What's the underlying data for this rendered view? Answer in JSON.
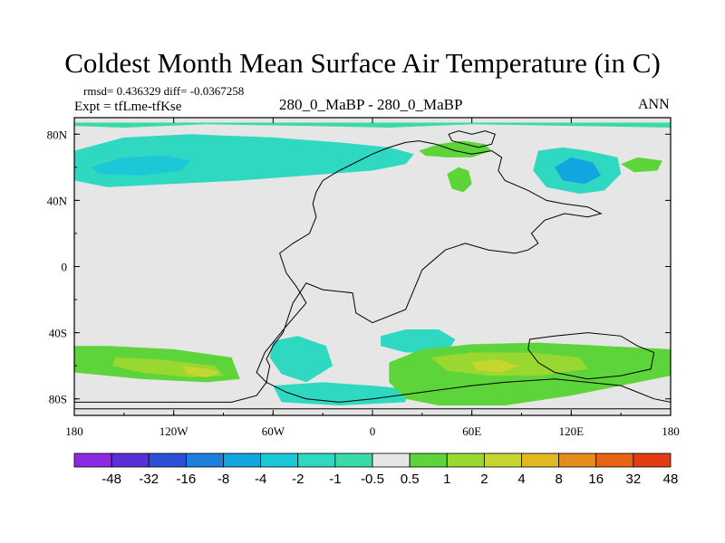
{
  "header": {
    "title": "Coldest Month Mean Surface Air Temperature (in C)",
    "stats": "rmsd= 0.436329 diff= -0.0367258",
    "experiment": "Expt = tfLme-tfKse",
    "comparison": "280_0_MaBP - 280_0_MaBP",
    "season": "ANN"
  },
  "chart_data": {
    "type": "heatmap",
    "title": "Coldest Month Mean Surface Air Temperature (in C)",
    "variable": "surface air temperature difference",
    "units": "C",
    "xlim": [
      -180,
      180
    ],
    "ylim": [
      -90,
      90
    ],
    "x_ticks": [
      {
        "value": -180,
        "label": "180"
      },
      {
        "value": -120,
        "label": "120W"
      },
      {
        "value": -60,
        "label": "60W"
      },
      {
        "value": 0,
        "label": "0"
      },
      {
        "value": 60,
        "label": "60E"
      },
      {
        "value": 120,
        "label": "120E"
      },
      {
        "value": 180,
        "label": "180"
      }
    ],
    "y_ticks": [
      {
        "value": 80,
        "label": "80N"
      },
      {
        "value": 40,
        "label": "40N"
      },
      {
        "value": 0,
        "label": "0"
      },
      {
        "value": -40,
        "label": "40S"
      },
      {
        "value": -80,
        "label": "80S"
      }
    ],
    "colorbar": {
      "colors": [
        "#8a2be2",
        "#5a2fd6",
        "#2c4fd8",
        "#1c7fdc",
        "#12a5e0",
        "#1cc8d8",
        "#2fd8c0",
        "#3ad9a8",
        "#e6e6e6",
        "#5cd43a",
        "#98d830",
        "#c7d62e",
        "#e0b820",
        "#e48d1a",
        "#e66414",
        "#e23c12"
      ],
      "labels": [
        "-48",
        "-32",
        "-16",
        "-8",
        "-4",
        "-2",
        "-1",
        "-0.5",
        "0.5",
        "1",
        "2",
        "4",
        "8",
        "16",
        "32",
        "48"
      ],
      "background": "#e6e6e6"
    },
    "regions": [
      {
        "name": "north-pacific-cooling",
        "color": "#2fd8c0",
        "points": [
          [
            -180,
            70
          ],
          [
            -150,
            78
          ],
          [
            -110,
            80
          ],
          [
            -60,
            78
          ],
          [
            -20,
            75
          ],
          [
            10,
            72
          ],
          [
            25,
            68
          ],
          [
            20,
            62
          ],
          [
            0,
            58
          ],
          [
            -40,
            55
          ],
          [
            -80,
            52
          ],
          [
            -120,
            50
          ],
          [
            -160,
            48
          ],
          [
            -180,
            52
          ]
        ]
      },
      {
        "name": "north-pacific-core-cooling",
        "color": "#1cc8d8",
        "points": [
          [
            -170,
            60
          ],
          [
            -150,
            66
          ],
          [
            -125,
            67
          ],
          [
            -110,
            64
          ],
          [
            -115,
            58
          ],
          [
            -140,
            55
          ],
          [
            -165,
            56
          ]
        ]
      },
      {
        "name": "arctic-cooling",
        "color": "#3ad9a8",
        "points": [
          [
            -180,
            85
          ],
          [
            -150,
            84
          ],
          [
            -100,
            86
          ],
          [
            -40,
            85
          ],
          [
            10,
            84
          ],
          [
            60,
            86
          ],
          [
            120,
            85
          ],
          [
            180,
            84
          ],
          [
            180,
            87
          ],
          [
            -180,
            87
          ]
        ]
      },
      {
        "name": "siberia-cooling",
        "color": "#2fd8c0",
        "points": [
          [
            100,
            70
          ],
          [
            115,
            72
          ],
          [
            130,
            70
          ],
          [
            148,
            66
          ],
          [
            150,
            56
          ],
          [
            140,
            46
          ],
          [
            125,
            44
          ],
          [
            105,
            48
          ],
          [
            97,
            58
          ]
        ]
      },
      {
        "name": "siberia-core-cooling",
        "color": "#12a5e0",
        "points": [
          [
            110,
            60
          ],
          [
            120,
            66
          ],
          [
            133,
            63
          ],
          [
            138,
            55
          ],
          [
            128,
            50
          ],
          [
            115,
            52
          ]
        ]
      },
      {
        "name": "arctic-warming",
        "color": "#5cd43a",
        "points": [
          [
            28,
            70
          ],
          [
            40,
            74
          ],
          [
            55,
            76
          ],
          [
            68,
            74
          ],
          [
            72,
            70
          ],
          [
            60,
            66
          ],
          [
            45,
            66
          ],
          [
            32,
            67
          ]
        ]
      },
      {
        "name": "europe-warming",
        "color": "#5cd43a",
        "points": [
          [
            45,
            56
          ],
          [
            52,
            60
          ],
          [
            58,
            58
          ],
          [
            60,
            50
          ],
          [
            55,
            45
          ],
          [
            48,
            47
          ]
        ]
      },
      {
        "name": "bering-warming",
        "color": "#5cd43a",
        "points": [
          [
            150,
            62
          ],
          [
            160,
            66
          ],
          [
            175,
            64
          ],
          [
            172,
            58
          ],
          [
            158,
            57
          ]
        ]
      },
      {
        "name": "south-atlantic-cooling",
        "color": "#2fd8c0",
        "points": [
          [
            -60,
            -45
          ],
          [
            -45,
            -42
          ],
          [
            -28,
            -48
          ],
          [
            -24,
            -60
          ],
          [
            -40,
            -70
          ],
          [
            -55,
            -65
          ],
          [
            -62,
            -55
          ]
        ]
      },
      {
        "name": "indian-cooling",
        "color": "#2fd8c0",
        "points": [
          [
            5,
            -42
          ],
          [
            20,
            -38
          ],
          [
            40,
            -38
          ],
          [
            50,
            -44
          ],
          [
            45,
            -52
          ],
          [
            20,
            -52
          ],
          [
            5,
            -48
          ]
        ]
      },
      {
        "name": "southern-ocean-cooling",
        "color": "#2fd8c0",
        "points": [
          [
            -60,
            -72
          ],
          [
            -30,
            -70
          ],
          [
            0,
            -72
          ],
          [
            20,
            -74
          ],
          [
            20,
            -82
          ],
          [
            -20,
            -84
          ],
          [
            -55,
            -82
          ]
        ]
      },
      {
        "name": "pacific-south-warming",
        "color": "#5cd43a",
        "points": [
          [
            -180,
            -48
          ],
          [
            -160,
            -48
          ],
          [
            -120,
            -50
          ],
          [
            -85,
            -55
          ],
          [
            -80,
            -68
          ],
          [
            -100,
            -70
          ],
          [
            -140,
            -68
          ],
          [
            -180,
            -64
          ]
        ]
      },
      {
        "name": "pacific-south-core-warming",
        "color": "#98d830",
        "points": [
          [
            -155,
            -55
          ],
          [
            -130,
            -56
          ],
          [
            -95,
            -60
          ],
          [
            -90,
            -66
          ],
          [
            -110,
            -67
          ],
          [
            -140,
            -64
          ],
          [
            -157,
            -60
          ]
        ]
      },
      {
        "name": "pacific-south-peak-warming",
        "color": "#c7d62e",
        "points": [
          [
            -115,
            -60
          ],
          [
            -100,
            -62
          ],
          [
            -92,
            -64
          ],
          [
            -100,
            -67
          ],
          [
            -112,
            -65
          ]
        ]
      },
      {
        "name": "southern-indian-warming",
        "color": "#5cd43a",
        "points": [
          [
            10,
            -58
          ],
          [
            30,
            -50
          ],
          [
            60,
            -47
          ],
          [
            100,
            -46
          ],
          [
            140,
            -48
          ],
          [
            180,
            -50
          ],
          [
            180,
            -66
          ],
          [
            150,
            -72
          ],
          [
            120,
            -78
          ],
          [
            80,
            -84
          ],
          [
            40,
            -84
          ],
          [
            20,
            -80
          ],
          [
            10,
            -70
          ]
        ]
      },
      {
        "name": "southern-indian-core-warming",
        "color": "#98d830",
        "points": [
          [
            35,
            -55
          ],
          [
            60,
            -52
          ],
          [
            95,
            -52
          ],
          [
            125,
            -55
          ],
          [
            130,
            -62
          ],
          [
            100,
            -66
          ],
          [
            70,
            -66
          ],
          [
            45,
            -63
          ]
        ]
      },
      {
        "name": "antarctic-peak-warming",
        "color": "#c7d62e",
        "points": [
          [
            60,
            -58
          ],
          [
            75,
            -56
          ],
          [
            88,
            -60
          ],
          [
            78,
            -64
          ],
          [
            63,
            -63
          ]
        ]
      }
    ],
    "continents": [
      {
        "name": "laurasia-south-america-africa",
        "points": [
          [
            -34,
            45
          ],
          [
            -30,
            52
          ],
          [
            -20,
            58
          ],
          [
            -8,
            64
          ],
          [
            0,
            68
          ],
          [
            10,
            72
          ],
          [
            20,
            75
          ],
          [
            28,
            76
          ],
          [
            38,
            74
          ],
          [
            50,
            70
          ],
          [
            60,
            68
          ],
          [
            72,
            70
          ],
          [
            78,
            66
          ],
          [
            76,
            58
          ],
          [
            80,
            52
          ],
          [
            94,
            46
          ],
          [
            105,
            40
          ],
          [
            115,
            38
          ],
          [
            130,
            36
          ],
          [
            138,
            32
          ],
          [
            130,
            30
          ],
          [
            116,
            32
          ],
          [
            104,
            28
          ],
          [
            96,
            20
          ],
          [
            100,
            14
          ],
          [
            94,
            10
          ],
          [
            86,
            8
          ],
          [
            70,
            10
          ],
          [
            56,
            14
          ],
          [
            44,
            10
          ],
          [
            30,
            -2
          ],
          [
            25,
            -14
          ],
          [
            20,
            -26
          ],
          [
            0,
            -34
          ],
          [
            -10,
            -28
          ],
          [
            -12,
            -16
          ],
          [
            -30,
            -14
          ],
          [
            -40,
            -10
          ],
          [
            -48,
            -22
          ],
          [
            -54,
            -40
          ],
          [
            -60,
            -48
          ],
          [
            -64,
            -56
          ],
          [
            -62,
            -60
          ],
          [
            -64,
            -70
          ],
          [
            -52,
            -76
          ],
          [
            -40,
            -80
          ],
          [
            -20,
            -82
          ],
          [
            0,
            -80
          ],
          [
            30,
            -76
          ],
          [
            60,
            -72
          ],
          [
            80,
            -70
          ],
          [
            110,
            -68
          ],
          [
            130,
            -70
          ],
          [
            150,
            -72
          ],
          [
            160,
            -76
          ],
          [
            170,
            -80
          ],
          [
            180,
            -82
          ],
          [
            180,
            -86
          ],
          [
            -180,
            -86
          ],
          [
            -180,
            -82
          ],
          [
            -85,
            -82
          ],
          [
            -70,
            -78
          ],
          [
            -64,
            -70
          ],
          [
            -70,
            -64
          ],
          [
            -65,
            -52
          ],
          [
            -52,
            -36
          ],
          [
            -40,
            -22
          ],
          [
            -46,
            -12
          ],
          [
            -52,
            -4
          ],
          [
            -56,
            8
          ],
          [
            -48,
            14
          ],
          [
            -38,
            20
          ],
          [
            -34,
            30
          ],
          [
            -36,
            38
          ]
        ]
      },
      {
        "name": "greenland-fragment",
        "points": [
          [
            46,
            80
          ],
          [
            52,
            82
          ],
          [
            60,
            80
          ],
          [
            68,
            82
          ],
          [
            74,
            80
          ],
          [
            72,
            74
          ],
          [
            64,
            72
          ],
          [
            56,
            74
          ],
          [
            48,
            76
          ]
        ]
      },
      {
        "name": "australia-fragment",
        "points": [
          [
            95,
            -44
          ],
          [
            110,
            -42
          ],
          [
            130,
            -40
          ],
          [
            150,
            -42
          ],
          [
            160,
            -48
          ],
          [
            170,
            -52
          ],
          [
            168,
            -62
          ],
          [
            150,
            -66
          ],
          [
            130,
            -68
          ],
          [
            110,
            -64
          ],
          [
            100,
            -58
          ],
          [
            94,
            -50
          ]
        ]
      }
    ]
  }
}
